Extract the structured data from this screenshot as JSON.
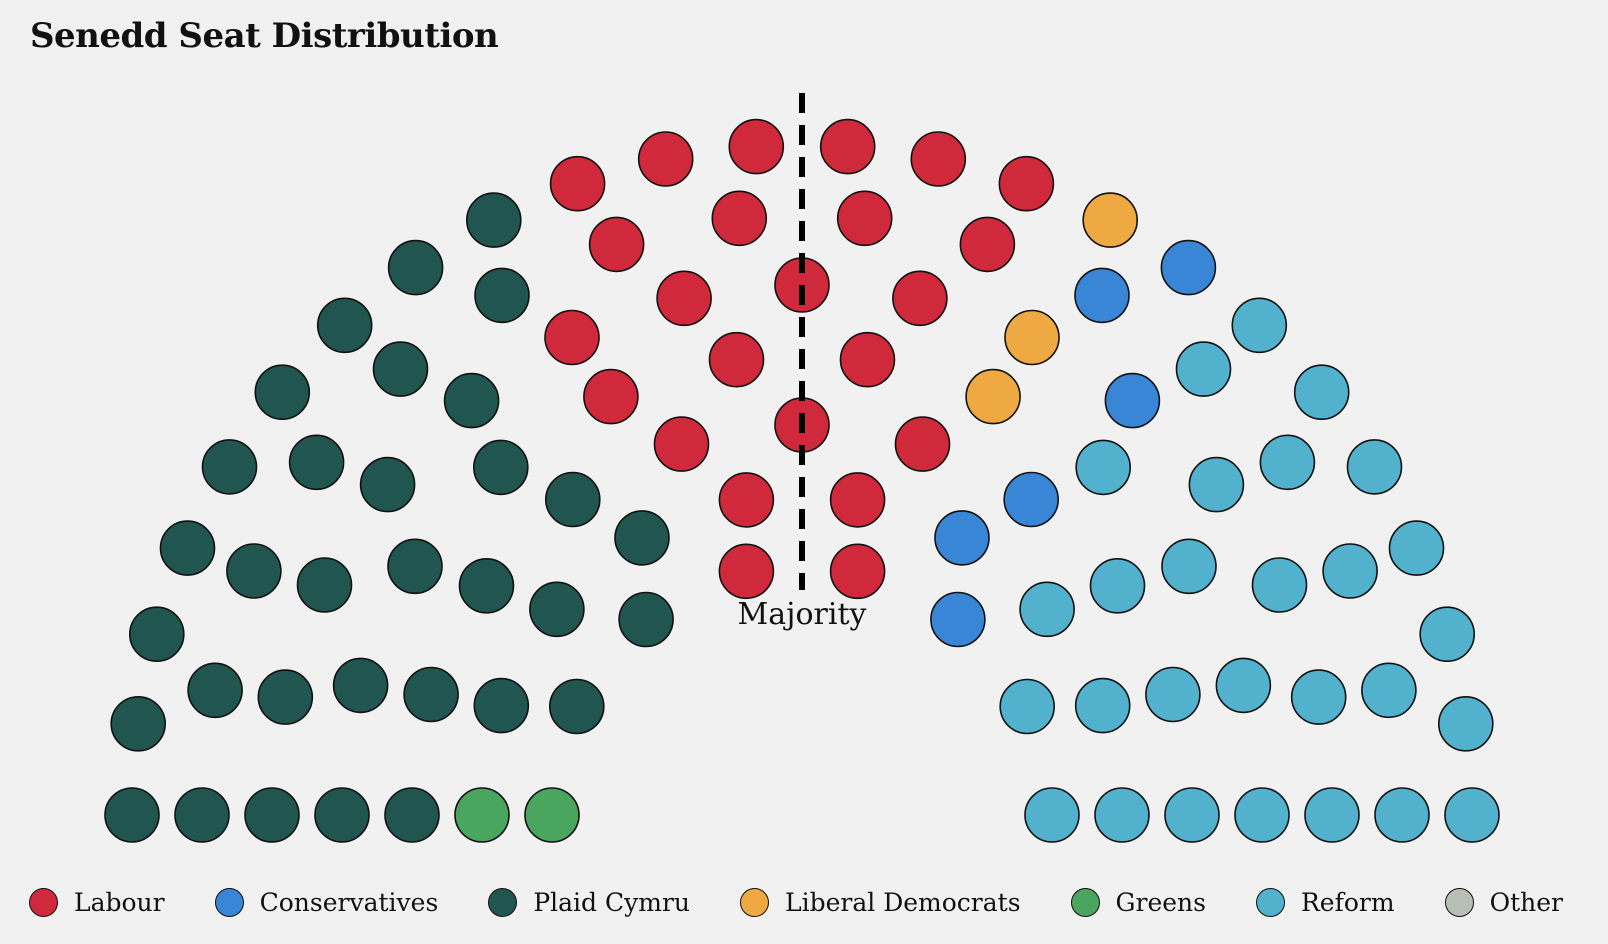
{
  "title": "Senedd Seat Distribution",
  "majority_label": "Majority",
  "parties": [
    {
      "key": "labour",
      "label": "Labour",
      "color": "#d0293c"
    },
    {
      "key": "conservatives",
      "label": "Conservatives",
      "color": "#3a86d6"
    },
    {
      "key": "plaid",
      "label": "Plaid Cymru",
      "color": "#215550"
    },
    {
      "key": "libdem",
      "label": "Liberal Democrats",
      "color": "#efa942"
    },
    {
      "key": "greens",
      "label": "Greens",
      "color": "#4aa55e"
    },
    {
      "key": "reform",
      "label": "Reform",
      "color": "#52b1cd"
    },
    {
      "key": "other",
      "label": "Other",
      "color": "#b8bfb7"
    }
  ],
  "chart_data": {
    "type": "parliament",
    "title": "Senedd Seat Distribution",
    "total_seats": 96,
    "majority_line": "Majority",
    "series": [
      {
        "name": "Greens",
        "seats": 2
      },
      {
        "name": "Plaid Cymru",
        "seats": 33
      },
      {
        "name": "Labour",
        "seats": 24
      },
      {
        "name": "Liberal Democrats",
        "seats": 3
      },
      {
        "name": "Conservatives",
        "seats": 6
      },
      {
        "name": "Reform",
        "seats": 28
      },
      {
        "name": "Other",
        "seats": 0
      }
    ]
  }
}
